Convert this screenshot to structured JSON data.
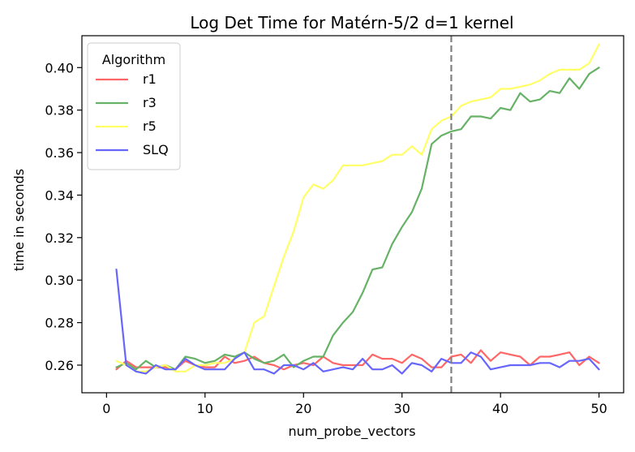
{
  "chart_data": {
    "type": "line",
    "title": "Log Det Time for Matérn-5/2 d=1 kernel",
    "xlabel": "num_probe_vectors",
    "ylabel": "time in seconds",
    "xlim": [
      -2.5,
      52.5
    ],
    "ylim": [
      0.247,
      0.415
    ],
    "xticks": [
      0,
      10,
      20,
      30,
      40,
      50
    ],
    "yticks": [
      0.26,
      0.28,
      0.3,
      0.32,
      0.34,
      0.36,
      0.38,
      0.4
    ],
    "ytick_labels": [
      "0.26",
      "0.28",
      "0.30",
      "0.32",
      "0.34",
      "0.36",
      "0.38",
      "0.40"
    ],
    "xtick_labels": [
      "0",
      "10",
      "20",
      "30",
      "40",
      "50"
    ],
    "grid": false,
    "legend": {
      "title": "Algorithm",
      "placement": "upper-left"
    },
    "vline": {
      "x": 35,
      "style": "dashed",
      "color": "#808080"
    },
    "x": [
      1,
      2,
      3,
      4,
      5,
      6,
      7,
      8,
      9,
      10,
      11,
      12,
      13,
      14,
      15,
      16,
      17,
      18,
      19,
      20,
      21,
      22,
      23,
      24,
      25,
      26,
      27,
      28,
      29,
      30,
      31,
      32,
      33,
      34,
      35,
      36,
      37,
      38,
      39,
      40,
      41,
      42,
      43,
      44,
      45,
      46,
      47,
      48,
      49,
      50
    ],
    "series": [
      {
        "name": "r1",
        "color": "#ff6666",
        "values": [
          0.258,
          0.262,
          0.259,
          0.259,
          0.259,
          0.259,
          0.258,
          0.262,
          0.26,
          0.259,
          0.259,
          0.264,
          0.261,
          0.262,
          0.264,
          0.261,
          0.26,
          0.258,
          0.26,
          0.261,
          0.26,
          0.264,
          0.261,
          0.26,
          0.26,
          0.26,
          0.265,
          0.263,
          0.263,
          0.261,
          0.265,
          0.263,
          0.259,
          0.259,
          0.264,
          0.265,
          0.261,
          0.267,
          0.262,
          0.266,
          0.265,
          0.264,
          0.26,
          0.264,
          0.264,
          0.265,
          0.266,
          0.26,
          0.264,
          0.261
        ]
      },
      {
        "name": "r3",
        "color": "#66b266",
        "values": [
          0.259,
          0.261,
          0.258,
          0.262,
          0.259,
          0.26,
          0.258,
          0.264,
          0.263,
          0.261,
          0.262,
          0.265,
          0.264,
          0.266,
          0.263,
          0.261,
          0.262,
          0.265,
          0.259,
          0.262,
          0.264,
          0.264,
          0.274,
          0.28,
          0.285,
          0.294,
          0.305,
          0.306,
          0.317,
          0.325,
          0.332,
          0.343,
          0.364,
          0.368,
          0.37,
          0.371,
          0.377,
          0.377,
          0.376,
          0.381,
          0.38,
          0.388,
          0.384,
          0.385,
          0.389,
          0.388,
          0.395,
          0.39,
          0.397,
          0.4
        ]
      },
      {
        "name": "r5",
        "color": "#ffff66",
        "values": [
          0.262,
          0.26,
          0.257,
          0.257,
          0.259,
          0.26,
          0.257,
          0.257,
          0.26,
          0.26,
          0.261,
          0.261,
          0.263,
          0.266,
          0.28,
          0.283,
          0.297,
          0.311,
          0.323,
          0.339,
          0.345,
          0.343,
          0.347,
          0.354,
          0.354,
          0.354,
          0.355,
          0.356,
          0.359,
          0.359,
          0.363,
          0.359,
          0.371,
          0.375,
          0.377,
          0.382,
          0.384,
          0.385,
          0.386,
          0.39,
          0.39,
          0.391,
          0.392,
          0.394,
          0.397,
          0.399,
          0.399,
          0.399,
          0.402,
          0.411
        ]
      },
      {
        "name": "SLQ",
        "color": "#6666ff",
        "values": [
          0.305,
          0.26,
          0.257,
          0.256,
          0.26,
          0.258,
          0.258,
          0.263,
          0.26,
          0.258,
          0.258,
          0.258,
          0.263,
          0.266,
          0.258,
          0.258,
          0.256,
          0.26,
          0.26,
          0.258,
          0.261,
          0.257,
          0.258,
          0.259,
          0.258,
          0.263,
          0.258,
          0.258,
          0.26,
          0.256,
          0.261,
          0.26,
          0.257,
          0.263,
          0.261,
          0.261,
          0.266,
          0.264,
          0.258,
          0.259,
          0.26,
          0.26,
          0.26,
          0.261,
          0.261,
          0.259,
          0.262,
          0.262,
          0.263,
          0.258
        ]
      }
    ]
  }
}
